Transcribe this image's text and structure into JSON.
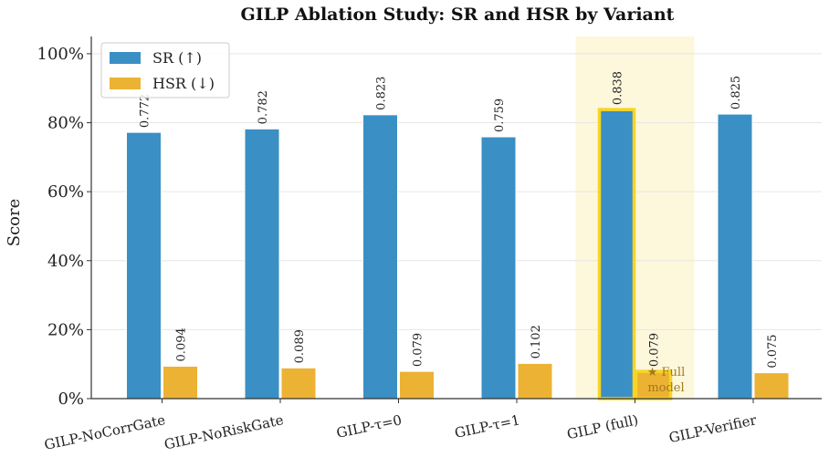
{
  "chart_data": {
    "type": "bar",
    "title": "GILP Ablation Study: SR and HSR by Variant",
    "xlabel": "",
    "ylabel": "Score",
    "ylim": [
      0,
      1.05
    ],
    "yticks": [
      0,
      0.2,
      0.4,
      0.6,
      0.8,
      1.0
    ],
    "ytick_labels": [
      "0%",
      "20%",
      "40%",
      "60%",
      "80%",
      "100%"
    ],
    "grid": "horizontal",
    "legend_position": "top-left",
    "categories": [
      "GILP-NoCorrGate",
      "GILP-NoRiskGate",
      "GILP-τ=0",
      "GILP-τ=1",
      "GILP (full)",
      "GILP-Verifier"
    ],
    "series": [
      {
        "name": "SR (↑)",
        "color": "#3a8fc5",
        "values": [
          0.772,
          0.782,
          0.823,
          0.759,
          0.838,
          0.825
        ],
        "labels": [
          "0.772",
          "0.782",
          "0.823",
          "0.759",
          "0.838",
          "0.825"
        ]
      },
      {
        "name": "HSR (↓)",
        "color": "#ecb233",
        "values": [
          0.094,
          0.089,
          0.079,
          0.102,
          0.079,
          0.075
        ],
        "labels": [
          "0.094",
          "0.089",
          "0.079",
          "0.102",
          "0.079",
          "0.075"
        ]
      }
    ],
    "highlight": {
      "category_index": 4,
      "band_color": "#fdf7dc",
      "outline_color": "#f9d423",
      "annotation": [
        "★ Full",
        "model"
      ],
      "annotation_color": "#a07a1c"
    }
  }
}
